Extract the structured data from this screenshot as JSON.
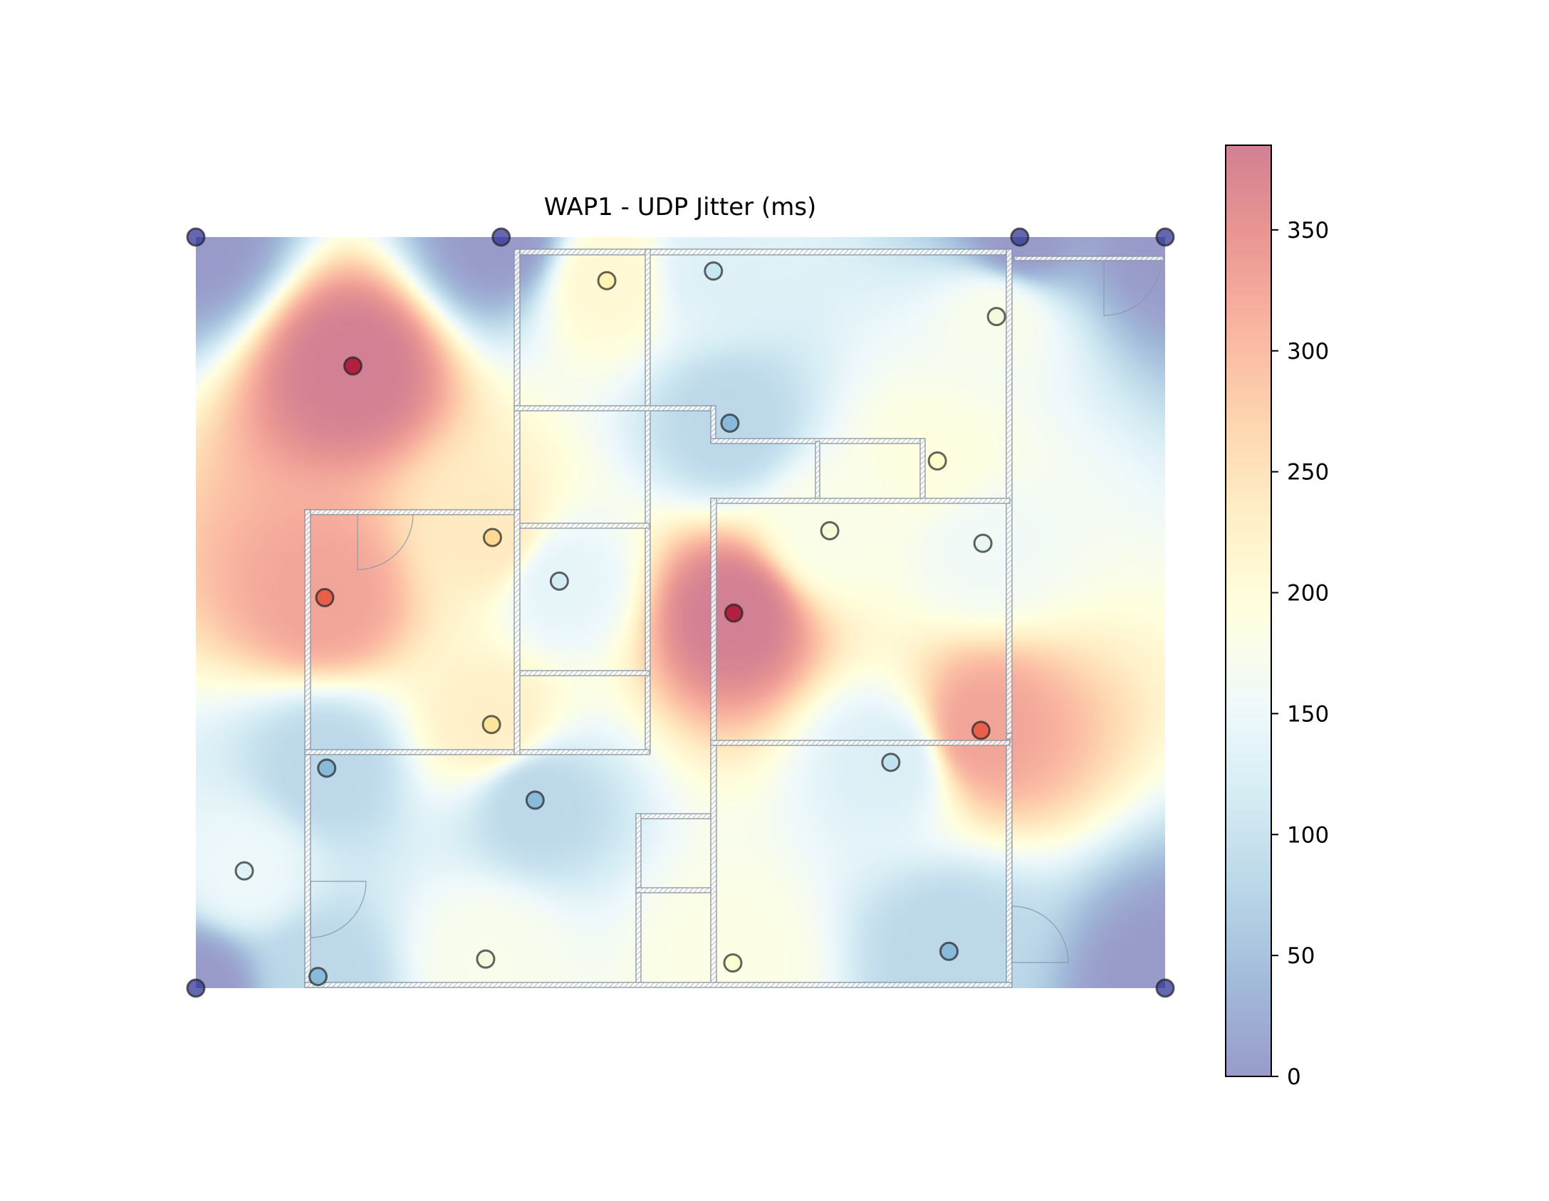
{
  "chart_data": {
    "type": "heatmap",
    "title": "WAP1 - UDP Jitter (ms)",
    "xlabel": "",
    "ylabel": "",
    "xlim": [
      0,
      1000
    ],
    "ylim": [
      0,
      775
    ],
    "value_range": [
      0,
      385
    ],
    "colorbar": {
      "ticks": [
        0,
        50,
        100,
        150,
        200,
        250,
        300,
        350
      ],
      "tick_labels": [
        "0",
        "50",
        "100",
        "150",
        "200",
        "250",
        "300",
        "350"
      ],
      "colormap": "RdYlBu_r",
      "alpha": 0.5
    },
    "points": [
      {
        "x": 0,
        "y": 0,
        "value": 0
      },
      {
        "x": 315,
        "y": 0,
        "value": 0
      },
      {
        "x": 850,
        "y": 0,
        "value": 0
      },
      {
        "x": 1000,
        "y": 0,
        "value": 0
      },
      {
        "x": 0,
        "y": 775,
        "value": 0
      },
      {
        "x": 1000,
        "y": 775,
        "value": 0
      },
      {
        "x": 424,
        "y": 45,
        "value": 210
      },
      {
        "x": 534,
        "y": 35,
        "value": 130
      },
      {
        "x": 826,
        "y": 82,
        "value": 175
      },
      {
        "x": 162,
        "y": 133,
        "value": 385
      },
      {
        "x": 551,
        "y": 192,
        "value": 80
      },
      {
        "x": 765,
        "y": 231,
        "value": 190
      },
      {
        "x": 306,
        "y": 310,
        "value": 240
      },
      {
        "x": 654,
        "y": 303,
        "value": 180
      },
      {
        "x": 812,
        "y": 316,
        "value": 160
      },
      {
        "x": 375,
        "y": 355,
        "value": 140
      },
      {
        "x": 133,
        "y": 372,
        "value": 330
      },
      {
        "x": 555,
        "y": 388,
        "value": 385
      },
      {
        "x": 305,
        "y": 503,
        "value": 230
      },
      {
        "x": 810,
        "y": 509,
        "value": 330
      },
      {
        "x": 135,
        "y": 548,
        "value": 80
      },
      {
        "x": 350,
        "y": 581,
        "value": 80
      },
      {
        "x": 717,
        "y": 542,
        "value": 125
      },
      {
        "x": 50,
        "y": 654,
        "value": 150
      },
      {
        "x": 299,
        "y": 745,
        "value": 175
      },
      {
        "x": 554,
        "y": 749,
        "value": 185
      },
      {
        "x": 777,
        "y": 737,
        "value": 80
      },
      {
        "x": 126,
        "y": 763,
        "value": 80
      }
    ]
  }
}
